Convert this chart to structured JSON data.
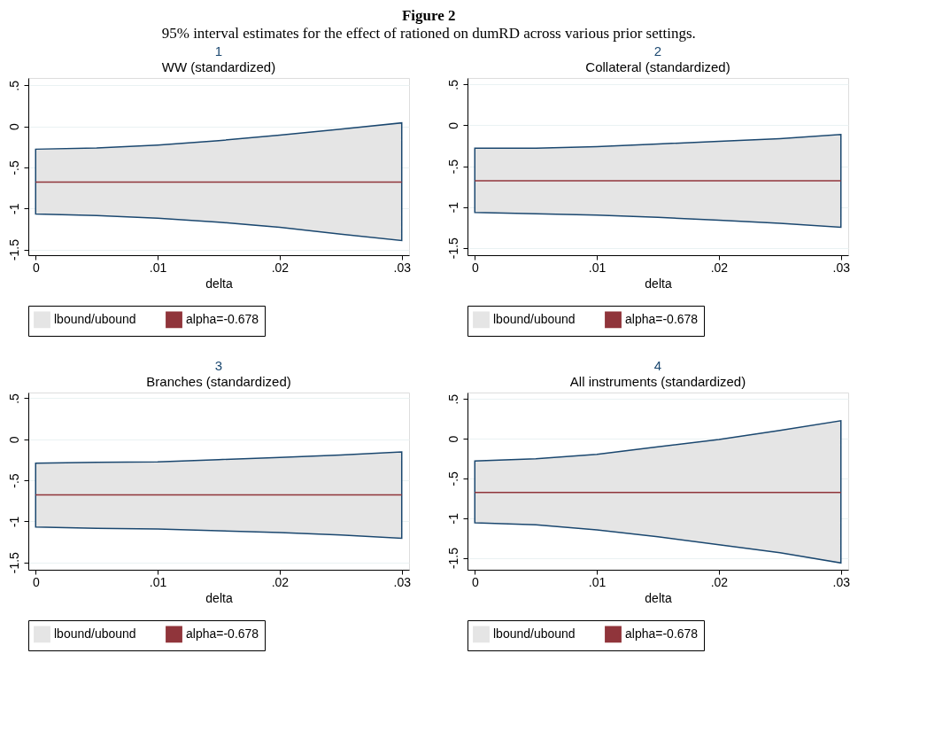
{
  "chart_data": [
    {
      "type": "line",
      "title": "1",
      "subtitle": "WW (standardized)",
      "xlabel": "delta",
      "annotations": [
        "Figure 2",
        "95% interval estimates for the effect of rationed on dumRD across various prior settings.",
        "lbound/ubound"
      ],
      "x": [
        0,
        0.005,
        0.01,
        0.015,
        0.02,
        0.025,
        0.03
      ],
      "series": [
        {
          "name": "alpha=-0.678",
          "color": "#90353b",
          "values": [
            -0.678,
            -0.678,
            -0.678,
            -0.678,
            -0.678,
            -0.678,
            -0.678
          ],
          "lower": [
            -1.067,
            -1.087,
            -1.12,
            -1.167,
            -1.231,
            -1.314,
            -1.391
          ],
          "upper": [
            -0.278,
            -0.264,
            -0.227,
            -0.174,
            -0.107,
            -0.033,
            0.043
          ]
        }
      ],
      "xlim": [
        -0.0006,
        0.0306
      ],
      "xticks": [
        0,
        {
          "value": 0.01,
          "label": ".01"
        },
        {
          "value": 0.02,
          "label": ".02"
        },
        {
          "value": 0.03,
          "label": ".03"
        }
      ],
      "ylim": [
        -1.57,
        0.59
      ],
      "yticks": [
        {
          "value": 0.5,
          "label": ".5"
        },
        0,
        {
          "value": -0.5,
          "label": "-.5"
        },
        -1,
        {
          "value": -1.5,
          "label": "-1.5"
        }
      ],
      "grid": "y",
      "legend": "bottom"
    },
    {
      "type": "line",
      "title": "2",
      "subtitle": "Collateral (standardized)",
      "xlabel": "delta",
      "annotations": [
        "lbound/ubound"
      ],
      "x": [
        0,
        0.005,
        0.01,
        0.015,
        0.02,
        0.025,
        0.03
      ],
      "series": [
        {
          "name": "alpha=-0.678",
          "color": "#90353b",
          "values": [
            -0.678,
            -0.678,
            -0.678,
            -0.678,
            -0.678,
            -0.678,
            -0.678
          ],
          "lower": [
            -1.066,
            -1.083,
            -1.099,
            -1.126,
            -1.162,
            -1.199,
            -1.248
          ],
          "upper": [
            -0.281,
            -0.281,
            -0.262,
            -0.228,
            -0.195,
            -0.162,
            -0.113
          ]
        }
      ],
      "xlim": [
        -0.0006,
        0.0306
      ],
      "xticks": [
        0,
        {
          "value": 0.01,
          "label": ".01"
        },
        {
          "value": 0.02,
          "label": ".02"
        },
        {
          "value": 0.03,
          "label": ".03"
        }
      ],
      "ylim": [
        -1.59,
        0.58
      ],
      "yticks": [
        {
          "value": 0.5,
          "label": ".5"
        },
        0,
        {
          "value": -0.5,
          "label": "-.5"
        },
        -1,
        {
          "value": -1.5,
          "label": "-1.5"
        }
      ],
      "grid": "y",
      "legend": "bottom"
    },
    {
      "type": "line",
      "title": "3",
      "subtitle": "Branches (standardized)",
      "xlabel": "delta",
      "annotations": [
        "lbound/ubound"
      ],
      "x": [
        0,
        0.005,
        0.01,
        0.015,
        0.02,
        0.025,
        0.03
      ],
      "series": [
        {
          "name": "alpha=-0.678",
          "color": "#90353b",
          "values": [
            -0.678,
            -0.678,
            -0.678,
            -0.678,
            -0.678,
            -0.678,
            -0.678
          ],
          "lower": [
            -1.07,
            -1.084,
            -1.094,
            -1.114,
            -1.137,
            -1.167,
            -1.207
          ],
          "upper": [
            -0.291,
            -0.281,
            -0.274,
            -0.247,
            -0.221,
            -0.191,
            -0.154
          ]
        }
      ],
      "xlim": [
        -0.0006,
        0.0306
      ],
      "xticks": [
        0,
        {
          "value": 0.01,
          "label": ".01"
        },
        {
          "value": 0.02,
          "label": ".02"
        },
        {
          "value": 0.03,
          "label": ".03"
        }
      ],
      "ylim": [
        -1.59,
        0.57
      ],
      "yticks": [
        {
          "value": 0.5,
          "label": ".5"
        },
        0,
        {
          "value": -0.5,
          "label": "-.5"
        },
        -1,
        {
          "value": -1.5,
          "label": "-1.5"
        }
      ],
      "grid": "y",
      "legend": "bottom"
    },
    {
      "type": "line",
      "title": "4",
      "subtitle": "All instruments (standardized)",
      "xlabel": "delta",
      "annotations": [
        "lbound/ubound"
      ],
      "x": [
        0,
        0.005,
        0.01,
        0.015,
        0.02,
        0.025,
        0.03
      ],
      "series": [
        {
          "name": "alpha=-0.678",
          "color": "#90353b",
          "values": [
            -0.678,
            -0.678,
            -0.678,
            -0.678,
            -0.678,
            -0.678,
            -0.678
          ],
          "lower": [
            -1.059,
            -1.083,
            -1.149,
            -1.235,
            -1.336,
            -1.436,
            -1.564
          ],
          "upper": [
            -0.28,
            -0.253,
            -0.197,
            -0.104,
            -0.01,
            0.104,
            0.225
          ]
        }
      ],
      "xlim": [
        -0.0006,
        0.0306
      ],
      "xticks": [
        0,
        {
          "value": 0.01,
          "label": ".01"
        },
        {
          "value": 0.02,
          "label": ".02"
        },
        {
          "value": 0.03,
          "label": ".03"
        }
      ],
      "ylim": [
        -1.65,
        0.58
      ],
      "yticks": [
        {
          "value": 0.5,
          "label": ".5"
        },
        0,
        {
          "value": -0.5,
          "label": "-.5"
        },
        -1,
        {
          "value": -1.5,
          "label": "-1.5"
        }
      ],
      "grid": "y",
      "legend": "bottom"
    }
  ]
}
